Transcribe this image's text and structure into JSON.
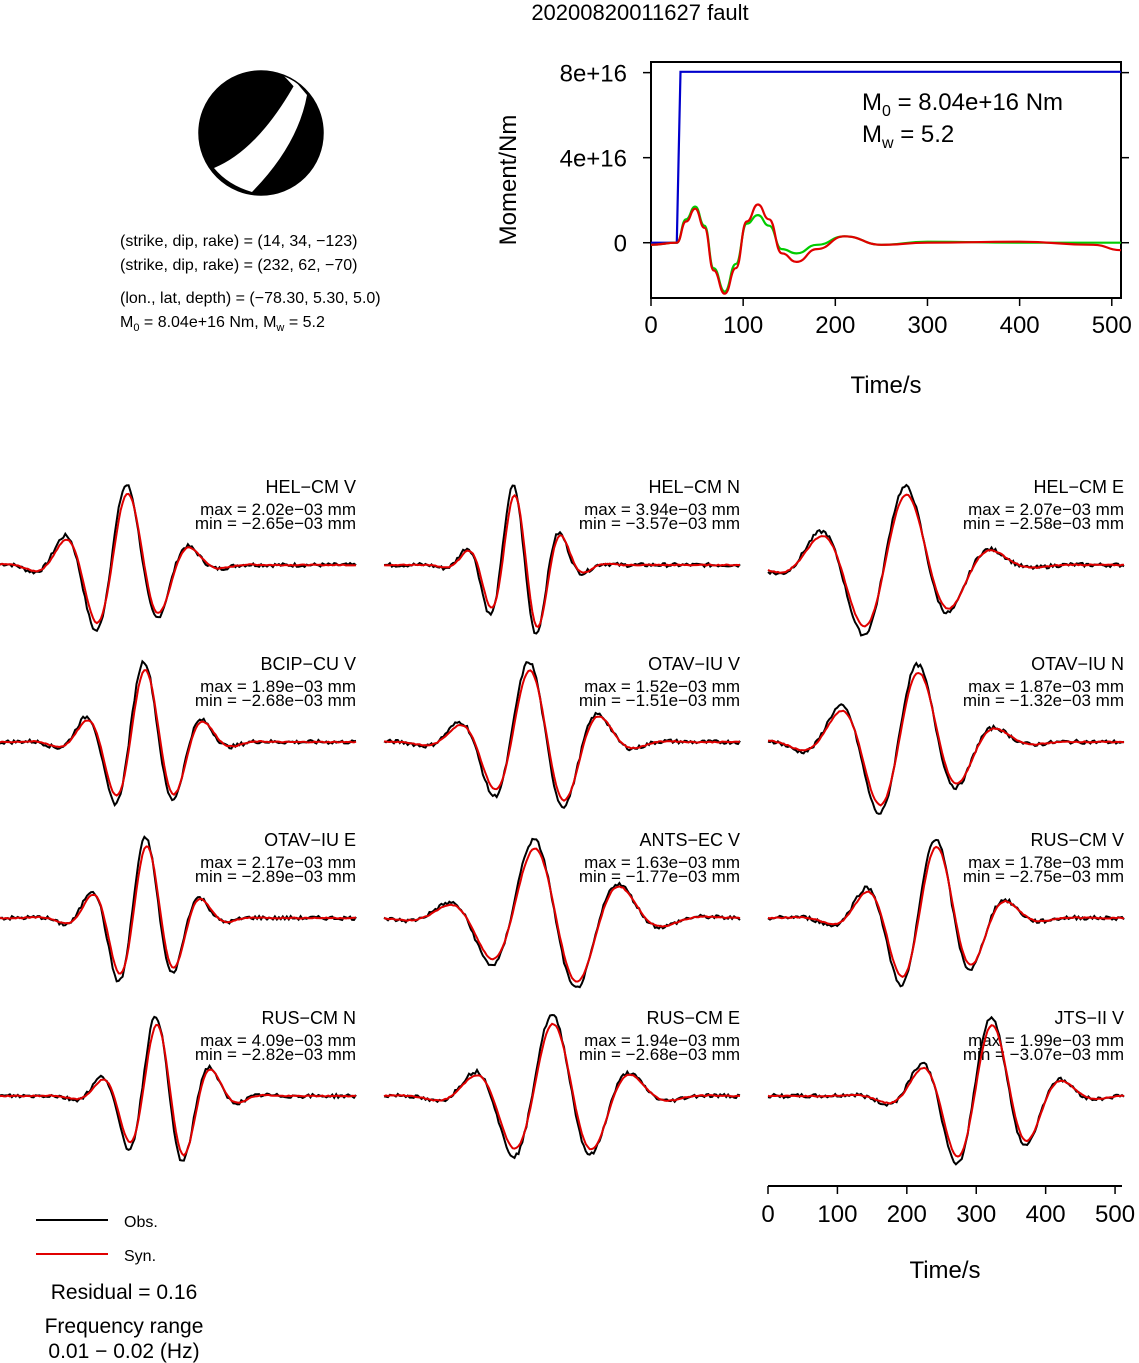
{
  "title": "20200820011627 fault",
  "mechanism": {
    "lines": [
      "(strike, dip, rake) = (14, 34, −123)",
      "(strike, dip, rake) = (232, 62, −70)",
      "(lon., lat, depth) = (−78.30, 5.30, 5.0)"
    ],
    "m0_mw_prefix": "M",
    "m0_sub": "0",
    "m0_mid": " = 8.04e+16 Nm, M",
    "mw_sub": "w",
    "mw_suffix": " = 5.2"
  },
  "moment_plot": {
    "ylabel": "Moment/Nm",
    "xlabel": "Time/s",
    "m0_label_prefix": "M",
    "m0_label_sub": "0",
    "m0_label_value": " = 8.04e+16 Nm",
    "mw_label_prefix": "M",
    "mw_label_sub": "w",
    "mw_label_value": " = 5.2"
  },
  "waveform_axis": {
    "xlabel": "Time/s"
  },
  "legend": {
    "obs": "Obs.",
    "syn": "Syn."
  },
  "residual": "Residual = 0.16",
  "freq_title": "Frequency range",
  "freq_value": "0.01 − 0.02 (Hz)",
  "colors": {
    "obs": "#000000",
    "syn": "#e00000",
    "moment": "#0000cc",
    "stf_fit": "#00cc00"
  },
  "chart_data": [
    {
      "type": "line",
      "title": "",
      "xlabel": "Time/s",
      "ylabel": "Moment/Nm",
      "xlim": [
        0,
        510
      ],
      "ylim": [
        -2.6e+16,
        8.5e+16
      ],
      "x_ticks": [
        0,
        100,
        200,
        300,
        400,
        500
      ],
      "y_ticks": [
        0,
        4e+16,
        8e+16
      ],
      "y_tick_labels": [
        "0",
        "4e+16",
        "8e+16"
      ],
      "series": [
        {
          "color": "#0000cc",
          "x": [
            0,
            28,
            30,
            32,
            510
          ],
          "y": [
            0,
            0,
            4e+16,
            8.04e+16,
            8.04e+16
          ]
        },
        {
          "color": "#00cc00",
          "x": [
            0,
            28,
            38,
            48,
            58,
            68,
            80,
            92,
            104,
            116,
            128,
            142,
            158,
            180,
            210,
            250,
            300,
            400,
            510
          ],
          "y": [
            -1000000000000000.0,
            0,
            1.1e+16,
            1.7e+16,
            8000000000000000.0,
            -1.2e+16,
            -2.3e+16,
            -1e+16,
            9000000000000000.0,
            1.3e+16,
            8000000000000000.0,
            -3000000000000000.0,
            -5000000000000000.0,
            -1000000000000000.0,
            3000000000000000.0,
            -1000000000000000.0,
            500000000000000.0,
            0,
            0
          ]
        },
        {
          "color": "#e00000",
          "x": [
            0,
            28,
            38,
            48,
            58,
            68,
            80,
            92,
            104,
            116,
            128,
            142,
            158,
            180,
            210,
            250,
            300,
            400,
            480,
            510
          ],
          "y": [
            -1000000000000000.0,
            0,
            1e+16,
            1.6e+16,
            7000000000000000.0,
            -1.3e+16,
            -2.4e+16,
            -1.2e+16,
            1e+16,
            1.8e+16,
            1.1e+16,
            -5000000000000000.0,
            -9000000000000000.0,
            -3000000000000000.0,
            3000000000000000.0,
            -1000000000000000.0,
            0,
            500000000000000.0,
            -1000000000000000.0,
            -3500000000000000.0
          ]
        }
      ]
    },
    {
      "type": "line",
      "xlabel": "Time/s",
      "xlim": [
        0,
        510
      ],
      "x_ticks": [
        0,
        100,
        200,
        300,
        400,
        500
      ],
      "panels": [
        {
          "station": "HEL−CM V",
          "max": "max = 2.02e−03 mm",
          "min": "min = −2.65e−03 mm"
        },
        {
          "station": "HEL−CM N",
          "max": "max = 3.94e−03 mm",
          "min": "min = −3.57e−03 mm"
        },
        {
          "station": "HEL−CM E",
          "max": "max = 2.07e−03 mm",
          "min": "min = −2.58e−03 mm"
        },
        {
          "station": "BCIP−CU V",
          "max": "max = 1.89e−03 mm",
          "min": "min = −2.68e−03 mm"
        },
        {
          "station": "OTAV−IU V",
          "max": "max = 1.52e−03 mm",
          "min": "min = −1.51e−03 mm"
        },
        {
          "station": "OTAV−IU N",
          "max": "max = 1.87e−03 mm",
          "min": "min = −1.32e−03 mm"
        },
        {
          "station": "OTAV−IU E",
          "max": "max = 2.17e−03 mm",
          "min": "min = −2.89e−03 mm"
        },
        {
          "station": "ANTS−EC V",
          "max": "max = 1.63e−03 mm",
          "min": "min = −1.77e−03 mm"
        },
        {
          "station": "RUS−CM V",
          "max": "max = 1.78e−03 mm",
          "min": "min = −2.75e−03 mm"
        },
        {
          "station": "RUS−CM N",
          "max": "max = 4.09e−03 mm",
          "min": "min = −2.82e−03 mm"
        },
        {
          "station": "RUS−CM E",
          "max": "max = 1.94e−03 mm",
          "min": "min = −2.68e−03 mm"
        },
        {
          "station": "JTS−II V",
          "max": "max = 1.99e−03 mm",
          "min": "min = −3.07e−03 mm"
        }
      ]
    }
  ]
}
